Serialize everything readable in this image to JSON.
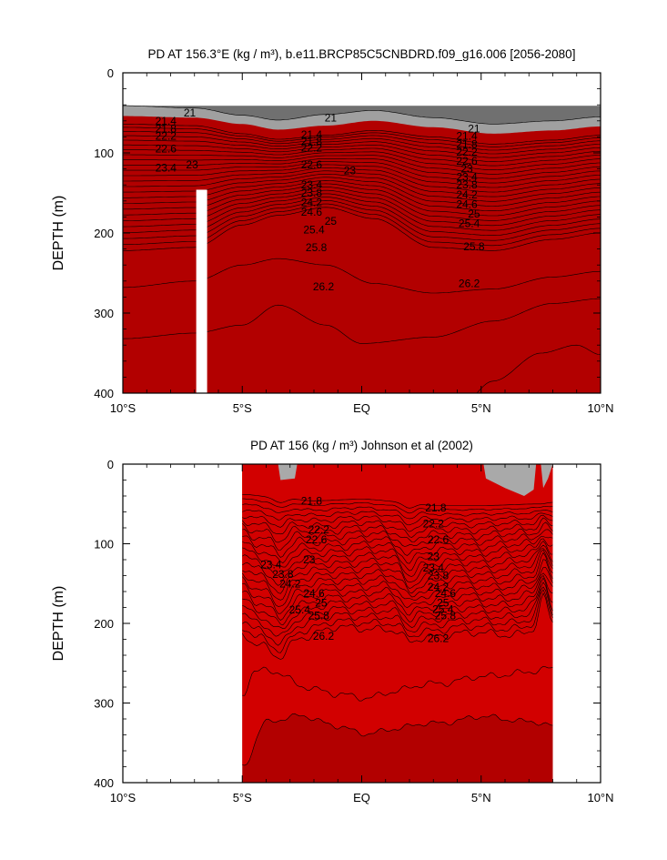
{
  "colors": {
    "ramp": [
      "#b20000",
      "#d20000",
      "#e40000",
      "#f42000",
      "#fa4f00",
      "#ff6f00",
      "#ff9020",
      "#ffab30",
      "#ffc830",
      "#ffe530",
      "#f2f020",
      "#c8f000",
      "#7ff000",
      "#22e040",
      "#00d290",
      "#00d8c8",
      "#00e8ec",
      "#00c9f4",
      "#00a8ff",
      "#0088ff",
      "#0064ff",
      "#0035ff",
      "#0000ee",
      "#4000d8",
      "#7a00c8",
      "#a200c8",
      "#c800c8",
      "#e800e8",
      "#ff00ff"
    ],
    "cap_gray": [
      "#707070",
      "#a0a0a0"
    ],
    "mask_bar": "#ffffff",
    "land_gray": "#a9a9a9"
  },
  "chart_data": [
    {
      "type": "contour",
      "title": "PD AT 156.3°E (kg / m³), b.e11.BRCP85C5CNBDRD.f09_g16.006 [2056-2080]",
      "ylabel": "DEPTH (m)",
      "xlim": [
        -10,
        10
      ],
      "ylim": [
        400,
        0
      ],
      "x_ticks": [
        "10°S",
        "5°S",
        "EQ",
        "5°N",
        "10°N"
      ],
      "y_ticks": [
        "0",
        "100",
        "200",
        "300",
        "400"
      ],
      "masked_column_lat": -6.7,
      "contour_levels": [
        21,
        21.2,
        21.4,
        21.6,
        21.8,
        22,
        22.2,
        22.4,
        22.6,
        22.8,
        23,
        23.2,
        23.4,
        23.6,
        23.8,
        24,
        24.2,
        24.4,
        24.6,
        24.8,
        25,
        25.2,
        25.4,
        25.6,
        25.8,
        26,
        26.2,
        26.4,
        26.6
      ],
      "contour_labels": [
        "21",
        "21.4",
        "21.8",
        "22.2",
        "22.6",
        "23",
        "23.4",
        "23.8",
        "24.2",
        "24.6",
        "25",
        "25.4",
        "25.8",
        "26.2"
      ]
    },
    {
      "type": "contour",
      "title": "PD AT 156 (kg / m³) Johnson et al (2002)",
      "ylabel": "DEPTH (m)",
      "xlim": [
        -10,
        10
      ],
      "ylim": [
        400,
        0
      ],
      "data_xlim": [
        -5,
        8
      ],
      "x_ticks": [
        "10°S",
        "5°S",
        "EQ",
        "5°N",
        "10°N"
      ],
      "y_ticks": [
        "0",
        "100",
        "200",
        "300",
        "400"
      ],
      "contour_levels": [
        21.8,
        22,
        22.2,
        22.4,
        22.6,
        22.8,
        23,
        23.2,
        23.4,
        23.6,
        23.8,
        24,
        24.2,
        24.4,
        24.6,
        24.8,
        25,
        25.2,
        25.4,
        25.6,
        25.8,
        26,
        26.2,
        26.4,
        26.6,
        26.8
      ],
      "contour_labels": [
        "21.8",
        "22.2",
        "22.6",
        "23",
        "23.4",
        "23.8",
        "24.2",
        "24.6",
        "25",
        "25.4",
        "25.8",
        "26.2",
        "26.6"
      ]
    }
  ]
}
